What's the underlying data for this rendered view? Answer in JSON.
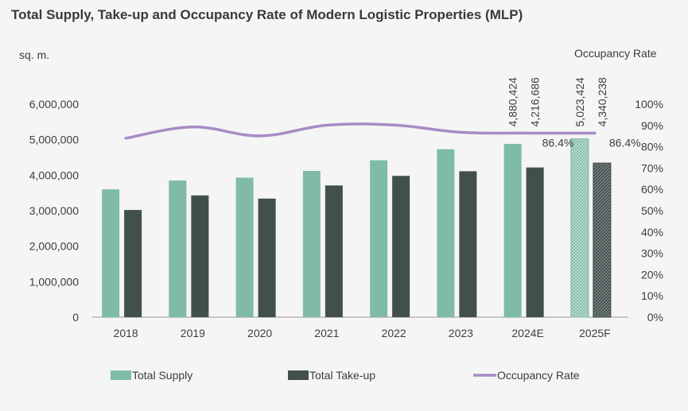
{
  "title": "Total Supply, Take-up and Occupancy Rate of Modern Logistic Properties (MLP)",
  "colors": {
    "supply": "#80bba9",
    "takeup": "#414f4d",
    "occupancy": "#a88bc6",
    "axis": "#9a9a9a",
    "text": "#3d3d3d"
  },
  "chart_data": {
    "type": "bar",
    "title": "Total Supply, Take-up and Occupancy Rate of Modern Logistic Properties (MLP)",
    "ylabel": "sq. m.",
    "y2label": "Occupancy Rate",
    "categories": [
      "2018",
      "2019",
      "2020",
      "2021",
      "2022",
      "2023",
      "2024E",
      "2025F"
    ],
    "ylim": [
      0,
      6000000
    ],
    "yticks": [
      "0",
      "1,000,000",
      "2,000,000",
      "3,000,000",
      "4,000,000",
      "5,000,000",
      "6,000,000"
    ],
    "y2lim": [
      0,
      100
    ],
    "y2ticks": [
      "0%",
      "10%",
      "20%",
      "30%",
      "40%",
      "50%",
      "60%",
      "70%",
      "80%",
      "90%",
      "100%"
    ],
    "grid": false,
    "legend_position": "bottom",
    "series": [
      {
        "name": "Total Supply",
        "type": "bar",
        "axis": "left",
        "values": [
          3600000,
          3850000,
          3930000,
          4120000,
          4420000,
          4730000,
          4880424,
          5023424
        ],
        "labels": [
          "",
          "",
          "",
          "",
          "",
          "",
          "4,880,424",
          "5,023,424"
        ],
        "forecast_pattern_from_index": 7
      },
      {
        "name": "Total Take-up",
        "type": "bar",
        "axis": "left",
        "values": [
          3020000,
          3430000,
          3340000,
          3710000,
          3980000,
          4110000,
          4216686,
          4340238
        ],
        "labels": [
          "",
          "",
          "",
          "",
          "",
          "",
          "4,216,686",
          "4,340,238"
        ],
        "forecast_pattern_from_index": 7
      },
      {
        "name": "Occupancy Rate",
        "type": "line",
        "axis": "right",
        "values": [
          84.0,
          89.3,
          85.1,
          90.1,
          90.2,
          86.8,
          86.4,
          86.4
        ],
        "labels": [
          "",
          "",
          "",
          "",
          "",
          "",
          "86.4%",
          "86.4%"
        ]
      }
    ]
  }
}
